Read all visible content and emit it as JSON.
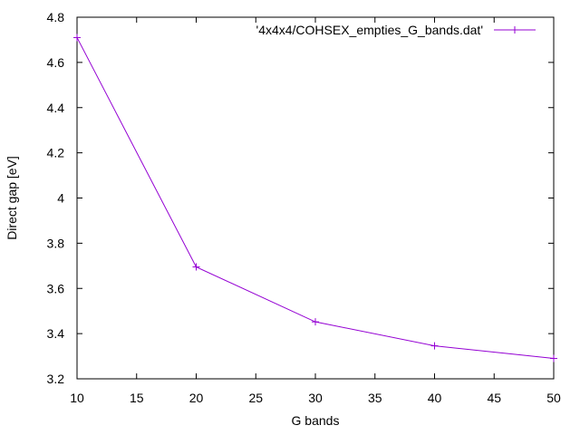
{
  "chart_data": {
    "type": "line",
    "title": "",
    "xlabel": "G bands",
    "ylabel": "Direct gap [eV]",
    "xlim": [
      10,
      50
    ],
    "ylim": [
      3.2,
      4.8
    ],
    "x_ticks": [
      "10",
      "15",
      "20",
      "25",
      "30",
      "35",
      "40",
      "45",
      "50"
    ],
    "y_ticks": [
      "3.2",
      "3.4",
      "3.6",
      "3.8",
      "4",
      "4.2",
      "4.4",
      "4.6",
      "4.8"
    ],
    "grid": false,
    "legend_position": "top-right",
    "series": [
      {
        "name": "'4x4x4/COHSEX_empties_G_bands.dat'",
        "color": "#9400d3",
        "marker": "plus",
        "x": [
          10,
          20,
          30,
          40,
          50
        ],
        "y": [
          4.71,
          3.695,
          3.452,
          3.346,
          3.29
        ]
      }
    ]
  }
}
